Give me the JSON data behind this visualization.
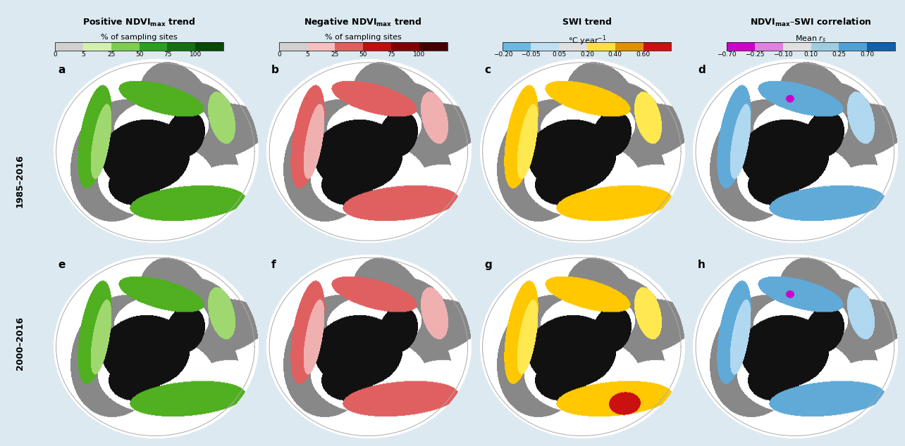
{
  "figure_bg": "#dce9f0",
  "title_row": [
    "Positive NDVI$_{\\mathbf{max}}$ trend",
    "Negative NDVI$_{\\mathbf{max}}$ trend",
    "SWI trend",
    "NDVI$_{\\mathbf{max}}$–SWI correlation"
  ],
  "subtitle_row": [
    "% of sampling sites",
    "% of sampling sites",
    "°C year$^{-1}$",
    "Mean $r_s$"
  ],
  "row_labels": [
    "1985–2016",
    "2000–2016"
  ],
  "panel_labels": [
    "a",
    "b",
    "c",
    "d",
    "e",
    "f",
    "g",
    "h"
  ],
  "cb1_colors": [
    "#d0d0d0",
    "#d4f0b0",
    "#7fcd50",
    "#28a020",
    "#147010",
    "#0a4808"
  ],
  "cb1_ticks": [
    "0",
    "5",
    "25",
    "50",
    "75",
    "100"
  ],
  "cb2_colors": [
    "#d0d0d0",
    "#f5c0c0",
    "#e06060",
    "#be1010",
    "#800000",
    "#440000"
  ],
  "cb2_ticks": [
    "0",
    "5",
    "25",
    "50",
    "75",
    "100"
  ],
  "cb3_colors": [
    "#6bb8e0",
    "#c0dff0",
    "#e0e0e0",
    "#ffe040",
    "#e09000",
    "#cc1010"
  ],
  "cb3_ticks": [
    "−0.20",
    "−0.05",
    "0.05",
    "0.20",
    "0.40",
    "0.60"
  ],
  "cb4_colors": [
    "#cc00cc",
    "#e080e0",
    "#e0e0e0",
    "#a0cce0",
    "#50a0d8",
    "#1060b0"
  ],
  "cb4_ticks": [
    "−0.70",
    "−0.25",
    "−0.10",
    "0.10",
    "0.25",
    "0.70"
  ],
  "map_gray": "#888888",
  "map_white": "#ffffff",
  "map_black": "#111111",
  "map_circle_edge": "#bbbbbb"
}
